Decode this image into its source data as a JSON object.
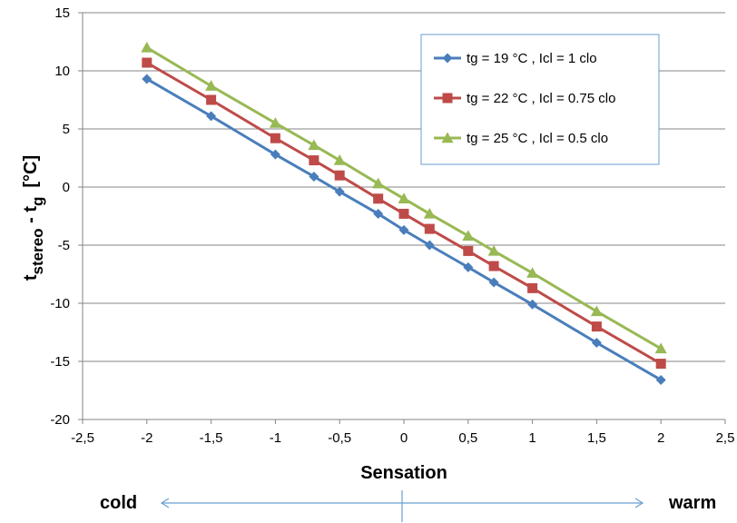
{
  "chart_data": {
    "type": "line",
    "xlabel": "Sensation",
    "ylabel": {
      "main": "t",
      "sub1": "stereo",
      "mid": " - t",
      "sub2": "g",
      "unit": "[°C]"
    },
    "xlim": [
      -2.5,
      2.5
    ],
    "ylim": [
      -20,
      15
    ],
    "x_ticks": [
      "-2,5",
      "-2",
      "-1,5",
      "-1",
      "-0,5",
      "0",
      "0,5",
      "1",
      "1,5",
      "2",
      "2,5"
    ],
    "y_ticks": [
      "-20",
      "-15",
      "-10",
      "-5",
      "0",
      "5",
      "10",
      "15"
    ],
    "grid": "horizontal",
    "legend_position": "top-right",
    "x": [
      -2,
      -1.5,
      -1,
      -0.7,
      -0.5,
      -0.2,
      0,
      0.2,
      0.5,
      0.7,
      1,
      1.5,
      2
    ],
    "series": [
      {
        "name": "tg = 19 °C , Icl = 1 clo",
        "color": "#4a7ebb",
        "marker": "diamond",
        "values": [
          9.3,
          6.1,
          2.8,
          0.9,
          -0.4,
          -2.3,
          -3.7,
          -5.0,
          -6.9,
          -8.2,
          -10.1,
          -13.4,
          -16.6
        ]
      },
      {
        "name": "tg = 22 °C , Icl = 0.75 clo",
        "color": "#be4b48",
        "marker": "square",
        "values": [
          10.7,
          7.5,
          4.2,
          2.3,
          1.0,
          -1.0,
          -2.3,
          -3.6,
          -5.5,
          -6.8,
          -8.7,
          -12.0,
          -15.2
        ]
      },
      {
        "name": "tg = 25 °C , Icl = 0.5 clo",
        "color": "#98b954",
        "marker": "triangle",
        "values": [
          12.0,
          8.7,
          5.5,
          3.6,
          2.3,
          0.3,
          -1.0,
          -2.3,
          -4.2,
          -5.5,
          -7.4,
          -10.7,
          -13.9
        ]
      }
    ]
  },
  "annotations": {
    "left_label": "cold",
    "right_label": "warm",
    "arrow_color": "#6a9fd0"
  }
}
